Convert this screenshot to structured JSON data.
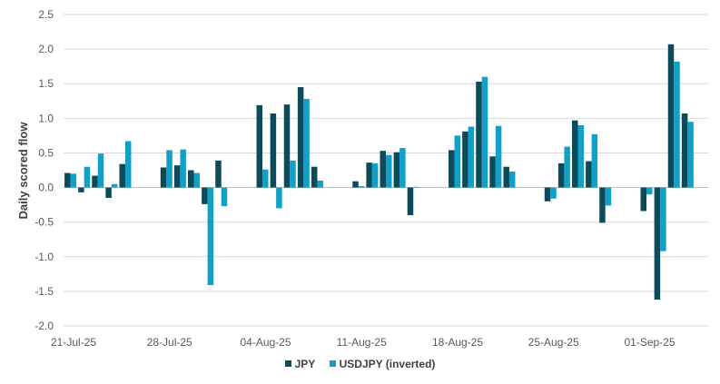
{
  "chart_data": {
    "type": "bar",
    "title": "",
    "xlabel": "",
    "ylabel": "Daily scored flow",
    "ylim": [
      -2.0,
      2.5
    ],
    "yticks": [
      "2.5",
      "2.0",
      "1.5",
      "1.0",
      "0.5",
      "0.0",
      "-0.5",
      "-1.0",
      "-1.5",
      "-2.0"
    ],
    "x_tick_labels": [
      "21-Jul-25",
      "28-Jul-25",
      "04-Aug-25",
      "11-Aug-25",
      "18-Aug-25",
      "25-Aug-25",
      "01-Sep-25"
    ],
    "grid": "horizontal",
    "legend_position": "bottom",
    "colors": {
      "JPY": "#0d4a5a",
      "USDJPY (inverted)": "#11a0c8"
    },
    "dates": [
      "21-Jul-25",
      "22-Jul-25",
      "23-Jul-25",
      "24-Jul-25",
      "25-Jul-25",
      "26-Jul-25",
      "27-Jul-25",
      "28-Jul-25",
      "29-Jul-25",
      "30-Jul-25",
      "31-Jul-25",
      "01-Aug-25",
      "02-Aug-25",
      "03-Aug-25",
      "04-Aug-25",
      "05-Aug-25",
      "06-Aug-25",
      "07-Aug-25",
      "08-Aug-25",
      "09-Aug-25",
      "10-Aug-25",
      "11-Aug-25",
      "12-Aug-25",
      "13-Aug-25",
      "14-Aug-25",
      "15-Aug-25",
      "16-Aug-25",
      "17-Aug-25",
      "18-Aug-25",
      "19-Aug-25",
      "20-Aug-25",
      "21-Aug-25",
      "22-Aug-25",
      "23-Aug-25",
      "24-Aug-25",
      "25-Aug-25",
      "26-Aug-25",
      "27-Aug-25",
      "28-Aug-25",
      "29-Aug-25",
      "30-Aug-25",
      "31-Aug-25",
      "01-Sep-25",
      "02-Sep-25",
      "03-Sep-25",
      "04-Sep-25",
      "05-Sep-25"
    ],
    "series": [
      {
        "name": "JPY",
        "values": [
          0.21,
          -0.07,
          0.17,
          -0.15,
          0.34,
          null,
          null,
          0.29,
          0.32,
          0.25,
          -0.24,
          0.39,
          null,
          null,
          1.19,
          1.07,
          1.2,
          1.45,
          0.3,
          null,
          null,
          0.09,
          0.36,
          0.53,
          0.51,
          -0.4,
          null,
          null,
          0.54,
          0.81,
          1.53,
          0.45,
          0.3,
          null,
          null,
          -0.2,
          0.35,
          0.97,
          0.38,
          -0.51,
          null,
          null,
          -0.34,
          -1.62,
          2.07,
          1.07,
          null
        ]
      },
      {
        "name": "USDJPY (inverted)",
        "values": [
          0.2,
          0.3,
          0.49,
          0.05,
          0.67,
          null,
          null,
          0.54,
          0.55,
          0.21,
          -1.41,
          -0.27,
          null,
          null,
          0.26,
          -0.3,
          0.39,
          1.28,
          0.1,
          null,
          null,
          0.02,
          0.35,
          0.47,
          0.57,
          0.01,
          null,
          null,
          0.75,
          0.88,
          1.6,
          0.89,
          0.23,
          null,
          null,
          -0.16,
          0.59,
          0.9,
          0.77,
          -0.26,
          null,
          null,
          -0.1,
          -0.92,
          1.82,
          0.95,
          null
        ]
      }
    ]
  }
}
